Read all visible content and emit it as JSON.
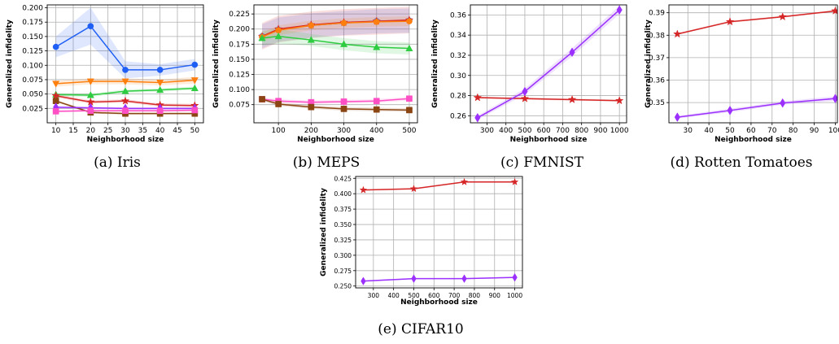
{
  "ylabel": "Generalized infidelity",
  "xlabel": "Neighborhood size",
  "chart_data": [
    {
      "id": "iris",
      "type": "line",
      "caption": "(a) Iris",
      "xlabel": "Neighborhood size",
      "ylabel": "Generalized infidelity",
      "xlim": [
        7.5,
        52.5
      ],
      "ylim": [
        0.0,
        0.205
      ],
      "xticks": [
        10,
        15,
        20,
        25,
        30,
        35,
        40,
        45,
        50
      ],
      "yticks": [
        0.025,
        0.05,
        0.075,
        0.1,
        0.125,
        0.15,
        0.175,
        0.2
      ],
      "ytick_labels": [
        "0.025",
        "0.050",
        "0.075",
        "0.100",
        "0.125",
        "0.150",
        "0.175",
        "0.200"
      ],
      "grid": true,
      "x": [
        10,
        20,
        30,
        40,
        50
      ],
      "series": [
        {
          "color": "#1f5ff5",
          "marker": "circle",
          "values": [
            0.132,
            0.168,
            0.092,
            0.092,
            0.101
          ],
          "band": [
            0.018,
            0.032,
            0.015,
            0.01,
            0.01
          ]
        },
        {
          "color": "#ff7f0e",
          "marker": "triangle-down",
          "values": [
            0.068,
            0.072,
            0.072,
            0.07,
            0.074
          ],
          "band": [
            0.005,
            0.005,
            0.005,
            0.005,
            0.006
          ]
        },
        {
          "color": "#2ecc40",
          "marker": "triangle-up",
          "values": [
            0.049,
            0.048,
            0.055,
            0.057,
            0.06
          ],
          "band": [
            0.003,
            0.003,
            0.003,
            0.003,
            0.003
          ]
        },
        {
          "color": "#d62728",
          "marker": "star",
          "values": [
            0.047,
            0.036,
            0.038,
            0.031,
            0.03
          ],
          "band": [
            0.003,
            0.003,
            0.003,
            0.003,
            0.003
          ]
        },
        {
          "color": "#8b4513",
          "marker": "square",
          "values": [
            0.038,
            0.018,
            0.016,
            0.016,
            0.016
          ],
          "band": [
            0.002,
            0.002,
            0.002,
            0.002,
            0.002
          ]
        },
        {
          "color": "#9b30ff",
          "marker": "diamond",
          "values": [
            0.027,
            0.026,
            0.025,
            0.025,
            0.025
          ],
          "band": [
            0.002,
            0.002,
            0.002,
            0.002,
            0.002
          ]
        },
        {
          "color": "#ff4fc4",
          "marker": "square",
          "values": [
            0.02,
            0.021,
            0.021,
            0.021,
            0.022
          ],
          "band": [
            0.002,
            0.002,
            0.002,
            0.002,
            0.002
          ]
        }
      ]
    },
    {
      "id": "meps",
      "type": "line",
      "caption": "(b) MEPS",
      "xlabel": "Neighborhood size",
      "ylabel": "Generalized infidelity",
      "xlim": [
        25,
        525
      ],
      "ylim": [
        0.045,
        0.24
      ],
      "xticks": [
        100,
        200,
        300,
        400,
        500
      ],
      "yticks": [
        0.075,
        0.1,
        0.125,
        0.15,
        0.175,
        0.2,
        0.225
      ],
      "ytick_labels": [
        "0.075",
        "0.100",
        "0.125",
        "0.150",
        "0.175",
        "0.200",
        "0.225"
      ],
      "grid": true,
      "x": [
        50,
        100,
        200,
        300,
        400,
        500
      ],
      "series": [
        {
          "color": "#1f5ff5",
          "marker": "circle",
          "values": [
            0.188,
            0.199,
            0.206,
            0.21,
            0.213,
            0.214
          ],
          "band": [
            0.02,
            0.02,
            0.02,
            0.02,
            0.02,
            0.02
          ]
        },
        {
          "color": "#d62728",
          "marker": "star",
          "values": [
            0.188,
            0.2,
            0.207,
            0.211,
            0.213,
            0.215
          ],
          "band": [
            0.022,
            0.022,
            0.022,
            0.022,
            0.022,
            0.022
          ]
        },
        {
          "color": "#ff7f0e",
          "marker": "circle",
          "values": [
            0.187,
            0.198,
            0.206,
            0.21,
            0.212,
            0.213
          ],
          "band": [
            0.008,
            0.008,
            0.008,
            0.008,
            0.008,
            0.008
          ]
        },
        {
          "color": "#2ecc40",
          "marker": "triangle-up",
          "values": [
            0.185,
            0.188,
            0.182,
            0.175,
            0.17,
            0.168
          ],
          "band": [
            0.012,
            0.012,
            0.01,
            0.01,
            0.01,
            0.01
          ]
        },
        {
          "color": "#ff4fc4",
          "marker": "square",
          "values": [
            0.084,
            0.081,
            0.079,
            0.08,
            0.081,
            0.085
          ],
          "band": [
            0.003,
            0.003,
            0.003,
            0.003,
            0.003,
            0.003
          ]
        },
        {
          "color": "#8b4513",
          "marker": "square",
          "values": [
            0.084,
            0.076,
            0.071,
            0.068,
            0.067,
            0.066
          ],
          "band": [
            0.003,
            0.003,
            0.003,
            0.003,
            0.003,
            0.003
          ]
        }
      ]
    },
    {
      "id": "fmnist",
      "type": "line",
      "caption": "(c) FMNIST",
      "xlabel": "Neighborhood size",
      "ylabel": "Generalized infidelity",
      "xlim": [
        212,
        1038
      ],
      "ylim": [
        0.253,
        0.37
      ],
      "xticks": [
        300,
        400,
        500,
        600,
        700,
        800,
        900,
        1000
      ],
      "yticks": [
        0.26,
        0.28,
        0.3,
        0.32,
        0.34,
        0.36
      ],
      "ytick_labels": [
        "0.26",
        "0.28",
        "0.30",
        "0.32",
        "0.34",
        "0.36"
      ],
      "grid": true,
      "x": [
        250,
        500,
        750,
        1000
      ],
      "series": [
        {
          "color": "#d62728",
          "marker": "star",
          "values": [
            0.278,
            0.277,
            0.276,
            0.275
          ],
          "band": [
            0.001,
            0.001,
            0.001,
            0.001
          ]
        },
        {
          "color": "#9b30ff",
          "marker": "diamond",
          "values": [
            0.258,
            0.284,
            0.323,
            0.365
          ],
          "band": [
            0.002,
            0.003,
            0.004,
            0.004
          ]
        }
      ]
    },
    {
      "id": "rotten-tomatoes",
      "type": "line",
      "caption": "(d) Rotten Tomatoes",
      "xlabel": "Neighborhood size",
      "ylabel": "Generalized infidelity",
      "xlim": [
        21,
        101
      ],
      "ylim": [
        0.341,
        0.3935
      ],
      "xticks": [
        30,
        40,
        50,
        60,
        70,
        80,
        90,
        100
      ],
      "yticks": [
        0.35,
        0.36,
        0.37,
        0.38,
        0.39
      ],
      "ytick_labels": [
        "0.35",
        "0.36",
        "0.37",
        "0.38",
        "0.39"
      ],
      "grid": true,
      "x": [
        25,
        50,
        75,
        100
      ],
      "series": [
        {
          "color": "#d62728",
          "marker": "star",
          "values": [
            0.3805,
            0.386,
            0.3882,
            0.3908
          ],
          "band": [
            0.0004,
            0.0004,
            0.0004,
            0.0004
          ]
        },
        {
          "color": "#9b30ff",
          "marker": "diamond",
          "values": [
            0.3435,
            0.3465,
            0.3498,
            0.3518
          ],
          "band": [
            0.0006,
            0.0008,
            0.0008,
            0.001
          ]
        }
      ]
    },
    {
      "id": "cifar10",
      "type": "line",
      "caption": "(e) CIFAR10",
      "xlabel": "Neighborhood size",
      "ylabel": "Generalized infidelity",
      "xlim": [
        212,
        1038
      ],
      "ylim": [
        0.247,
        0.428
      ],
      "xticks": [
        300,
        400,
        500,
        600,
        700,
        800,
        900,
        1000
      ],
      "yticks": [
        0.25,
        0.275,
        0.3,
        0.325,
        0.35,
        0.375,
        0.4,
        0.425
      ],
      "ytick_labels": [
        "0.250",
        "0.275",
        "0.300",
        "0.325",
        "0.350",
        "0.375",
        "0.400",
        "0.425"
      ],
      "grid": true,
      "x": [
        250,
        500,
        750,
        1000
      ],
      "series": [
        {
          "color": "#d62728",
          "marker": "star",
          "values": [
            0.406,
            0.408,
            0.419,
            0.419
          ],
          "band": [
            0.001,
            0.001,
            0.001,
            0.001
          ]
        },
        {
          "color": "#9b30ff",
          "marker": "diamond",
          "values": [
            0.258,
            0.262,
            0.262,
            0.264
          ],
          "band": [
            0.001,
            0.001,
            0.001,
            0.001
          ]
        }
      ]
    }
  ]
}
